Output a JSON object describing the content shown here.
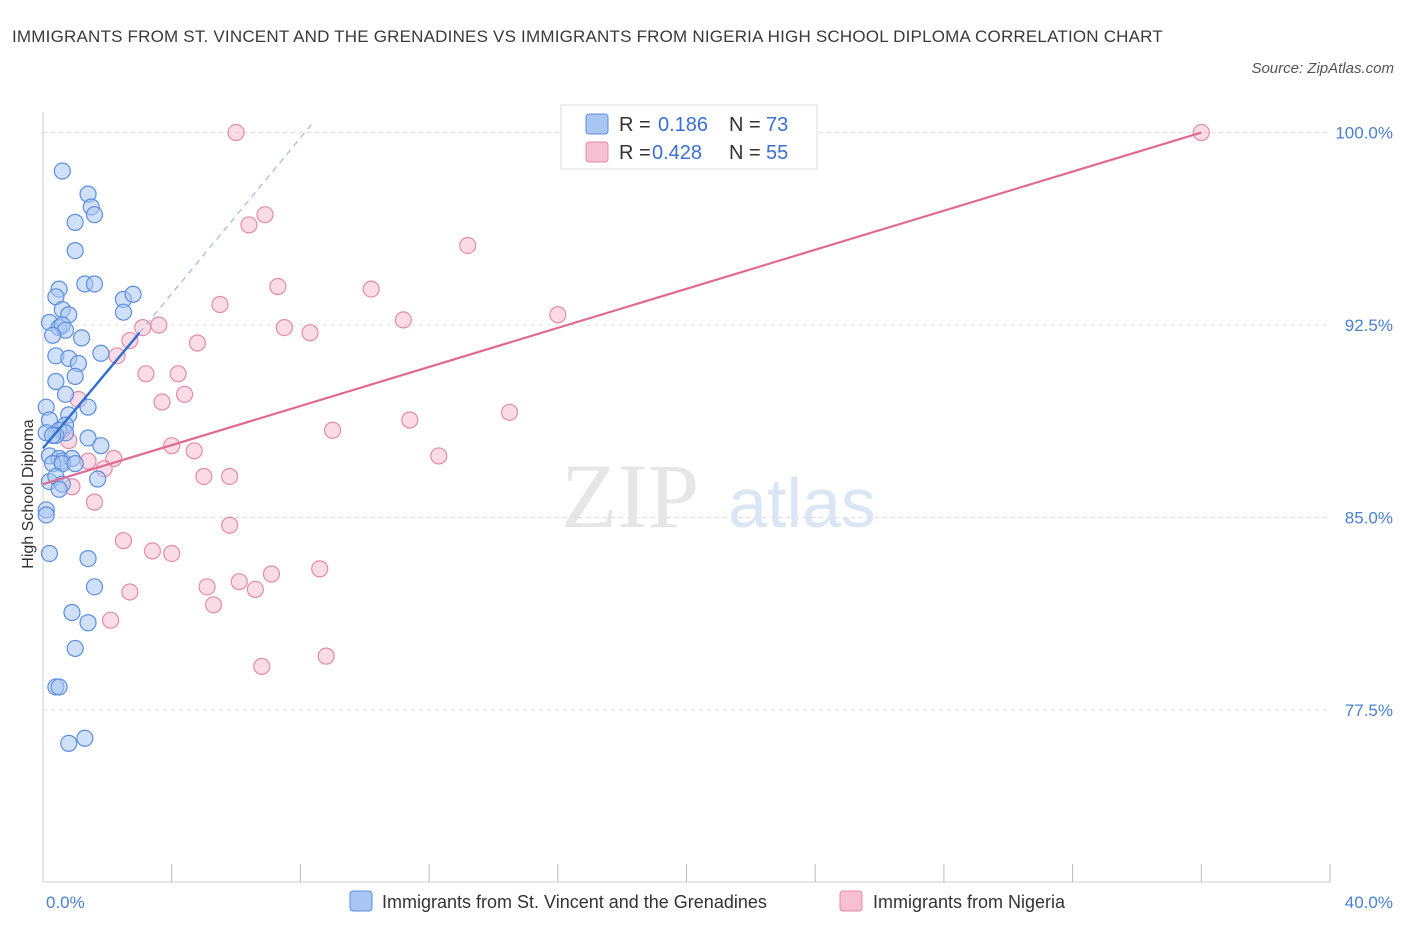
{
  "header": {
    "title": "IMMIGRANTS FROM ST. VINCENT AND THE GRENADINES VS IMMIGRANTS FROM NIGERIA HIGH SCHOOL DIPLOMA CORRELATION CHART",
    "source": "Source: ZipAtlas.com"
  },
  "colors": {
    "series1_fill": "#a9c6f2",
    "series1_stroke": "#5b8ee0",
    "series1_line": "#2d6fd0",
    "series2_fill": "#f7bfd2",
    "series2_stroke": "#e48aa9",
    "series2_line": "#e06a92",
    "tick_text": "#4a7fd0",
    "grid": "#dddddd"
  },
  "legend": {
    "rows": [
      {
        "r_label": "R =",
        "r_value": "0.186",
        "n_label": "N =",
        "n_value": "73"
      },
      {
        "r_label": "R =",
        "r_value": "0.428",
        "n_label": "N =",
        "n_value": "55"
      }
    ]
  },
  "watermark": {
    "zip": "ZIP",
    "atlas": "atlas"
  },
  "chart_data": {
    "type": "scatter",
    "ylabel": "High School Diploma",
    "xlim": [
      0,
      40
    ],
    "ylim": [
      70.8,
      100.8
    ],
    "x_tick_labels": [
      {
        "value": 0,
        "label": "0.0%"
      },
      {
        "value": 40,
        "label": "40.0%"
      }
    ],
    "y_ticks": [
      {
        "value": 77.5,
        "label": "77.5%"
      },
      {
        "value": 85.0,
        "label": "85.0%"
      },
      {
        "value": 92.5,
        "label": "92.5%"
      },
      {
        "value": 100.0,
        "label": "100.0%"
      }
    ],
    "x_minor_ticks": [
      4,
      8,
      12,
      16,
      20,
      24,
      28,
      32,
      36,
      40
    ],
    "grid": true,
    "legend_placement": "top-center",
    "series": [
      {
        "name": "Immigrants from St. Vincent and the Grenadines",
        "R": 0.186,
        "N": 73,
        "trend": {
          "x": [
            0.0,
            3.0
          ],
          "y": [
            87.7,
            92.2
          ]
        },
        "trend_extension": {
          "x": [
            3.0,
            8.4
          ],
          "y": [
            92.2,
            100.4
          ]
        },
        "points": [
          [
            0.6,
            98.5
          ],
          [
            1.4,
            97.6
          ],
          [
            1.5,
            97.1
          ],
          [
            1.6,
            96.8
          ],
          [
            1.0,
            96.5
          ],
          [
            1.0,
            95.4
          ],
          [
            0.5,
            93.9
          ],
          [
            1.3,
            94.1
          ],
          [
            1.6,
            94.1
          ],
          [
            0.4,
            93.6
          ],
          [
            2.5,
            93.5
          ],
          [
            2.8,
            93.7
          ],
          [
            2.5,
            93.0
          ],
          [
            0.6,
            93.1
          ],
          [
            0.8,
            92.9
          ],
          [
            0.2,
            92.6
          ],
          [
            0.5,
            92.4
          ],
          [
            0.6,
            92.5
          ],
          [
            0.7,
            92.3
          ],
          [
            0.3,
            92.1
          ],
          [
            1.2,
            92.0
          ],
          [
            0.4,
            91.3
          ],
          [
            0.8,
            91.2
          ],
          [
            1.8,
            91.4
          ],
          [
            1.1,
            91.0
          ],
          [
            0.4,
            90.3
          ],
          [
            1.0,
            90.5
          ],
          [
            0.7,
            89.8
          ],
          [
            0.1,
            89.3
          ],
          [
            1.4,
            89.3
          ],
          [
            0.8,
            89.0
          ],
          [
            0.2,
            88.8
          ],
          [
            0.7,
            88.6
          ],
          [
            0.5,
            88.4
          ],
          [
            0.7,
            88.3
          ],
          [
            0.4,
            88.2
          ],
          [
            0.1,
            88.3
          ],
          [
            0.3,
            88.2
          ],
          [
            1.4,
            88.1
          ],
          [
            1.8,
            87.8
          ],
          [
            0.2,
            87.4
          ],
          [
            0.5,
            87.3
          ],
          [
            0.6,
            87.2
          ],
          [
            0.9,
            87.3
          ],
          [
            0.3,
            87.1
          ],
          [
            0.6,
            87.1
          ],
          [
            1.0,
            87.1
          ],
          [
            1.7,
            86.5
          ],
          [
            0.2,
            86.4
          ],
          [
            0.4,
            86.6
          ],
          [
            0.6,
            86.3
          ],
          [
            0.5,
            86.1
          ],
          [
            0.1,
            85.3
          ],
          [
            0.1,
            85.1
          ],
          [
            0.2,
            83.6
          ],
          [
            1.4,
            83.4
          ],
          [
            1.6,
            82.3
          ],
          [
            0.9,
            81.3
          ],
          [
            1.4,
            80.9
          ],
          [
            1.0,
            79.9
          ],
          [
            0.4,
            78.4
          ],
          [
            0.5,
            78.4
          ],
          [
            1.3,
            76.4
          ],
          [
            0.8,
            76.2
          ]
        ]
      },
      {
        "name": "Immigrants from Nigeria",
        "R": 0.428,
        "N": 55,
        "trend": {
          "x": [
            0.0,
            36.0
          ],
          "y": [
            86.3,
            100.0
          ]
        },
        "points": [
          [
            6.0,
            100.0
          ],
          [
            16.5,
            100.0
          ],
          [
            36.0,
            100.0
          ],
          [
            6.9,
            96.8
          ],
          [
            6.4,
            96.4
          ],
          [
            13.2,
            95.6
          ],
          [
            7.3,
            94.0
          ],
          [
            10.2,
            93.9
          ],
          [
            5.5,
            93.3
          ],
          [
            16.0,
            92.9
          ],
          [
            11.2,
            92.7
          ],
          [
            7.5,
            92.4
          ],
          [
            8.3,
            92.2
          ],
          [
            3.1,
            92.4
          ],
          [
            3.6,
            92.5
          ],
          [
            2.7,
            91.9
          ],
          [
            4.8,
            91.8
          ],
          [
            2.3,
            91.3
          ],
          [
            3.2,
            90.6
          ],
          [
            4.2,
            90.6
          ],
          [
            4.4,
            89.8
          ],
          [
            3.7,
            89.5
          ],
          [
            1.1,
            89.6
          ],
          [
            14.5,
            89.1
          ],
          [
            11.4,
            88.8
          ],
          [
            9.0,
            88.4
          ],
          [
            0.8,
            88.0
          ],
          [
            0.6,
            88.4
          ],
          [
            4.0,
            87.8
          ],
          [
            4.7,
            87.6
          ],
          [
            12.3,
            87.4
          ],
          [
            2.2,
            87.3
          ],
          [
            1.4,
            87.2
          ],
          [
            1.9,
            86.9
          ],
          [
            5.0,
            86.6
          ],
          [
            5.8,
            86.6
          ],
          [
            0.9,
            86.2
          ],
          [
            1.6,
            85.6
          ],
          [
            5.8,
            84.7
          ],
          [
            2.5,
            84.1
          ],
          [
            3.4,
            83.7
          ],
          [
            4.0,
            83.6
          ],
          [
            8.6,
            83.0
          ],
          [
            7.1,
            82.8
          ],
          [
            6.1,
            82.5
          ],
          [
            5.1,
            82.3
          ],
          [
            6.6,
            82.2
          ],
          [
            2.7,
            82.1
          ],
          [
            5.3,
            81.6
          ],
          [
            2.1,
            81.0
          ],
          [
            8.8,
            79.6
          ],
          [
            6.8,
            79.2
          ]
        ]
      }
    ]
  }
}
